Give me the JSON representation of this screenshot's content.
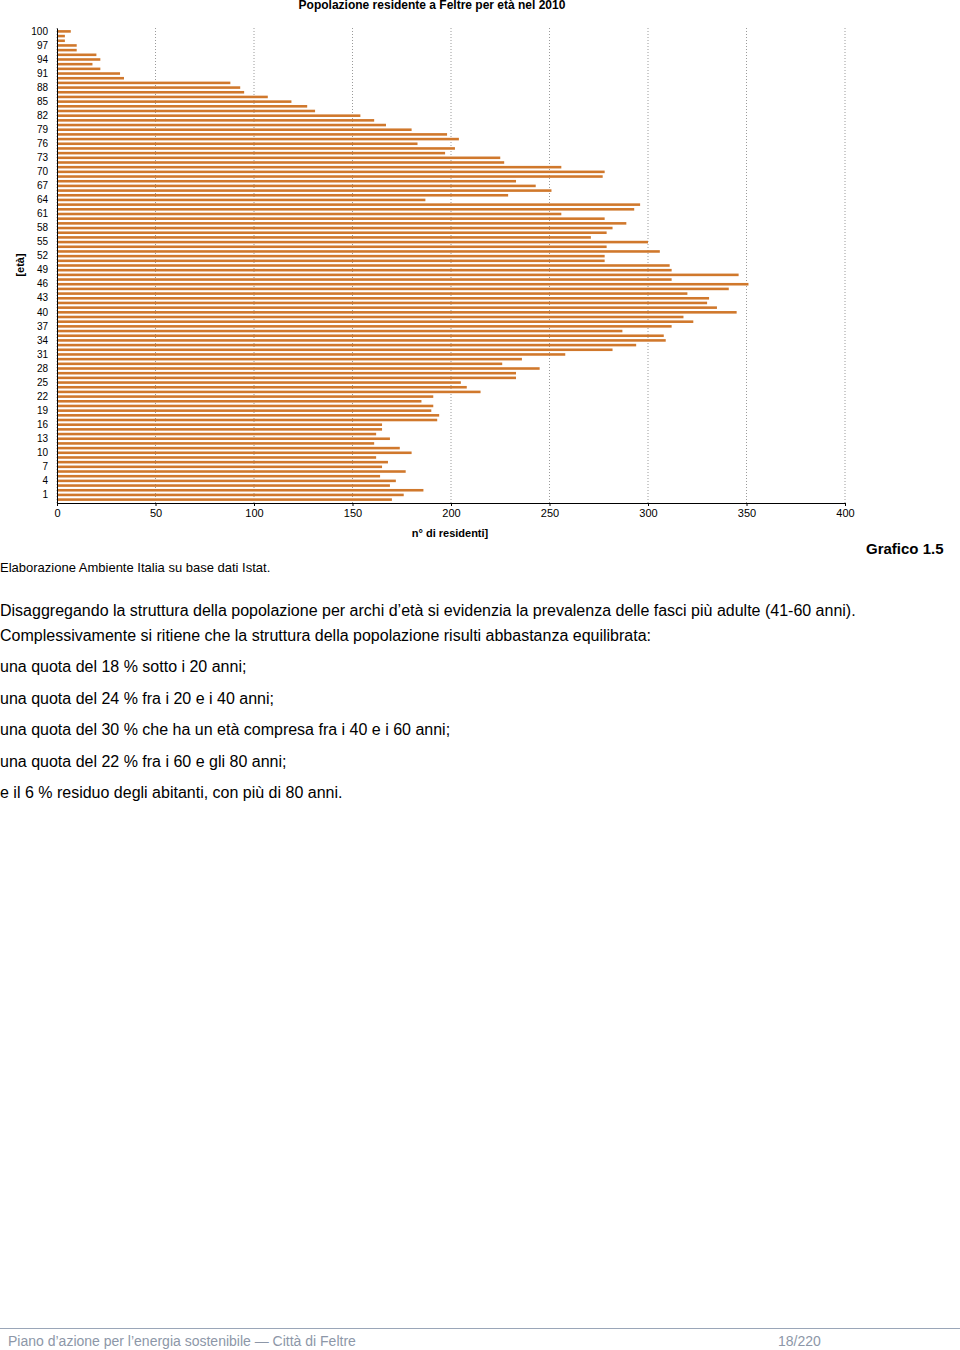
{
  "chart_data": {
    "type": "bar",
    "orientation": "horizontal",
    "title": "Popolazione residente a Feltre per età nel 2010",
    "x_label": "n° di residenti]",
    "y_label": "[età]",
    "categories": [
      "100",
      null,
      null,
      "97",
      null,
      null,
      "94",
      null,
      null,
      "91",
      null,
      null,
      "88",
      null,
      null,
      "85",
      null,
      null,
      "82",
      null,
      null,
      "79",
      null,
      null,
      "76",
      null,
      null,
      "73",
      null,
      null,
      "70",
      null,
      null,
      "67",
      null,
      null,
      "64",
      null,
      null,
      "61",
      null,
      null,
      "58",
      null,
      null,
      "55",
      null,
      null,
      "52",
      null,
      null,
      "49",
      null,
      null,
      "46",
      null,
      null,
      "43",
      null,
      null,
      "40",
      null,
      null,
      "37",
      null,
      null,
      "34",
      null,
      null,
      "31",
      null,
      null,
      "28",
      null,
      null,
      "25",
      null,
      null,
      "22",
      null,
      null,
      "19",
      null,
      null,
      "16",
      null,
      null,
      "13",
      null,
      null,
      "10",
      null,
      null,
      "7",
      null,
      null,
      "4",
      null,
      null,
      "1",
      null
    ],
    "values": [
      7,
      4,
      4,
      10,
      10,
      20,
      22,
      18,
      22,
      32,
      34,
      88,
      93,
      95,
      107,
      119,
      127,
      131,
      154,
      161,
      167,
      180,
      198,
      204,
      183,
      202,
      197,
      225,
      227,
      256,
      278,
      277,
      233,
      243,
      251,
      229,
      187,
      296,
      293,
      256,
      278,
      289,
      282,
      279,
      271,
      300,
      279,
      306,
      278,
      278,
      311,
      312,
      346,
      312,
      351,
      341,
      320,
      331,
      330,
      335,
      345,
      318,
      323,
      312,
      287,
      308,
      309,
      294,
      282,
      258,
      236,
      226,
      245,
      233,
      233,
      205,
      208,
      215,
      191,
      185,
      191,
      190,
      194,
      193,
      165,
      165,
      162,
      169,
      161,
      174,
      180,
      162,
      168,
      165,
      177,
      164,
      172,
      169,
      186,
      176,
      170
    ],
    "color": "#d0782c",
    "xlim": [
      0,
      400
    ],
    "xticks": [
      0,
      50,
      100,
      150,
      200,
      250,
      300,
      350,
      400
    ],
    "grid": true
  },
  "document": {
    "caption": "Grafico 1.5",
    "source": "Elaborazione Ambiente Italia su base dati Istat.",
    "paragraph": "Disaggregando la struttura della popolazione per archi d’età si evidenzia la prevalenza delle fasci più adulte (41-60 anni). Complessivamente si ritiene che la struttura della popolazione risulti abbastanza equilibrata:",
    "items": [
      "una quota del 18 % sotto i 20 anni;",
      "una quota del 24 % fra i 20 e i 40 anni;",
      "una quota del 30 % che ha un età compresa fra i 40 e i 60 anni;",
      "una quota del 22 % fra i 60 e gli 80 anni;",
      "e il 6 % residuo degli abitanti, con più di 80 anni."
    ],
    "footer_left": "Piano d’azione per l’energia sostenibile — Città di Feltre",
    "footer_right": "18/220"
  }
}
